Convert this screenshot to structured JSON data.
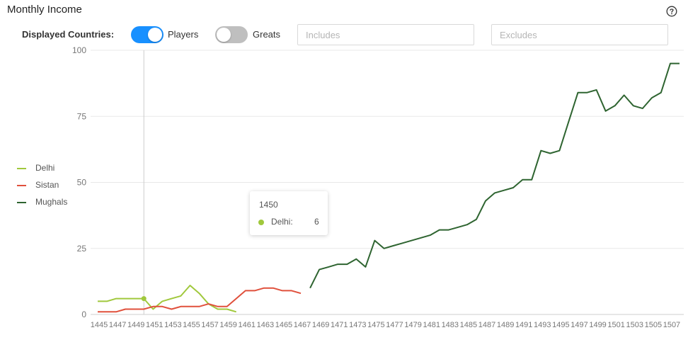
{
  "header": {
    "title": "Monthly Income",
    "help_icon": "question-circle-icon"
  },
  "controls": {
    "label": "Displayed Countries:",
    "toggles": [
      {
        "label": "Players",
        "on": true
      },
      {
        "label": "Greats",
        "on": false
      }
    ],
    "includes_placeholder": "Includes",
    "includes_value": "",
    "excludes_placeholder": "Excludes",
    "excludes_value": ""
  },
  "colors": {
    "accent": "#1890ff",
    "toggle_off": "#bfbfbf",
    "grid": "#e8e8e8",
    "crosshair": "#cccccc"
  },
  "tooltip": {
    "title": "1450",
    "series": "Delhi:",
    "value": "6",
    "color": "#a0c83c"
  },
  "chart_data": {
    "type": "line",
    "title": "Monthly Income",
    "xlabel": "",
    "ylabel": "",
    "ylim": [
      0,
      100
    ],
    "y_ticks": [
      0,
      25,
      50,
      75,
      100
    ],
    "x_tick_labels": [
      "1445",
      "1447",
      "1449",
      "1451",
      "1453",
      "1455",
      "1457",
      "1459",
      "1461",
      "1463",
      "1465",
      "1467",
      "1469",
      "1471",
      "1473",
      "1475",
      "1477",
      "1479",
      "1481",
      "1483",
      "1485",
      "1487",
      "1489",
      "1491",
      "1493",
      "1495",
      "1497",
      "1499",
      "1501",
      "1503",
      "1505",
      "1507"
    ],
    "grid": true,
    "legend_position": "left",
    "highlight_x": 1450,
    "series": [
      {
        "name": "Delhi",
        "color": "#a0c83c",
        "x": [
          1445,
          1446,
          1447,
          1448,
          1449,
          1450,
          1451,
          1452,
          1453,
          1454,
          1455,
          1456,
          1457,
          1458,
          1459,
          1460
        ],
        "y": [
          5,
          5,
          6,
          6,
          6,
          6,
          2,
          5,
          6,
          7,
          11,
          8,
          4,
          2,
          2,
          1
        ]
      },
      {
        "name": "Sistan",
        "color": "#e0503c",
        "x": [
          1445,
          1446,
          1447,
          1448,
          1449,
          1450,
          1451,
          1452,
          1453,
          1454,
          1455,
          1456,
          1457,
          1458,
          1459,
          1460,
          1461,
          1462,
          1463,
          1464,
          1465,
          1466,
          1467
        ],
        "y": [
          1,
          1,
          1,
          2,
          2,
          2,
          3,
          3,
          2,
          3,
          3,
          3,
          4,
          3,
          3,
          6,
          9,
          9,
          10,
          10,
          9,
          9,
          8
        ]
      },
      {
        "name": "Mughals",
        "color": "#2e6430",
        "x": [
          1468,
          1469,
          1470,
          1471,
          1472,
          1473,
          1474,
          1475,
          1476,
          1477,
          1478,
          1479,
          1480,
          1481,
          1482,
          1483,
          1484,
          1485,
          1486,
          1487,
          1488,
          1489,
          1490,
          1491,
          1492,
          1493,
          1494,
          1495,
          1496,
          1497,
          1498,
          1499,
          1500,
          1501,
          1502,
          1503,
          1504,
          1505,
          1506,
          1507,
          1508
        ],
        "y": [
          10,
          17,
          18,
          19,
          19,
          21,
          18,
          28,
          25,
          26,
          27,
          28,
          29,
          30,
          32,
          32,
          33,
          34,
          36,
          43,
          46,
          47,
          48,
          51,
          51,
          62,
          61,
          62,
          73,
          84,
          84,
          85,
          77,
          79,
          83,
          79,
          78,
          82,
          84,
          95,
          95
        ]
      }
    ]
  }
}
